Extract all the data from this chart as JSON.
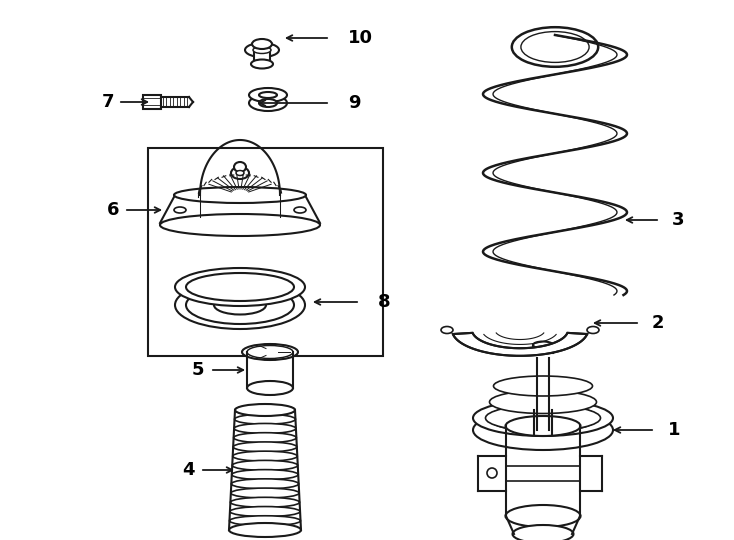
{
  "bg_color": "#ffffff",
  "line_color": "#1a1a1a",
  "lw": 1.5,
  "fig_w": 7.34,
  "fig_h": 5.4,
  "dpi": 100
}
